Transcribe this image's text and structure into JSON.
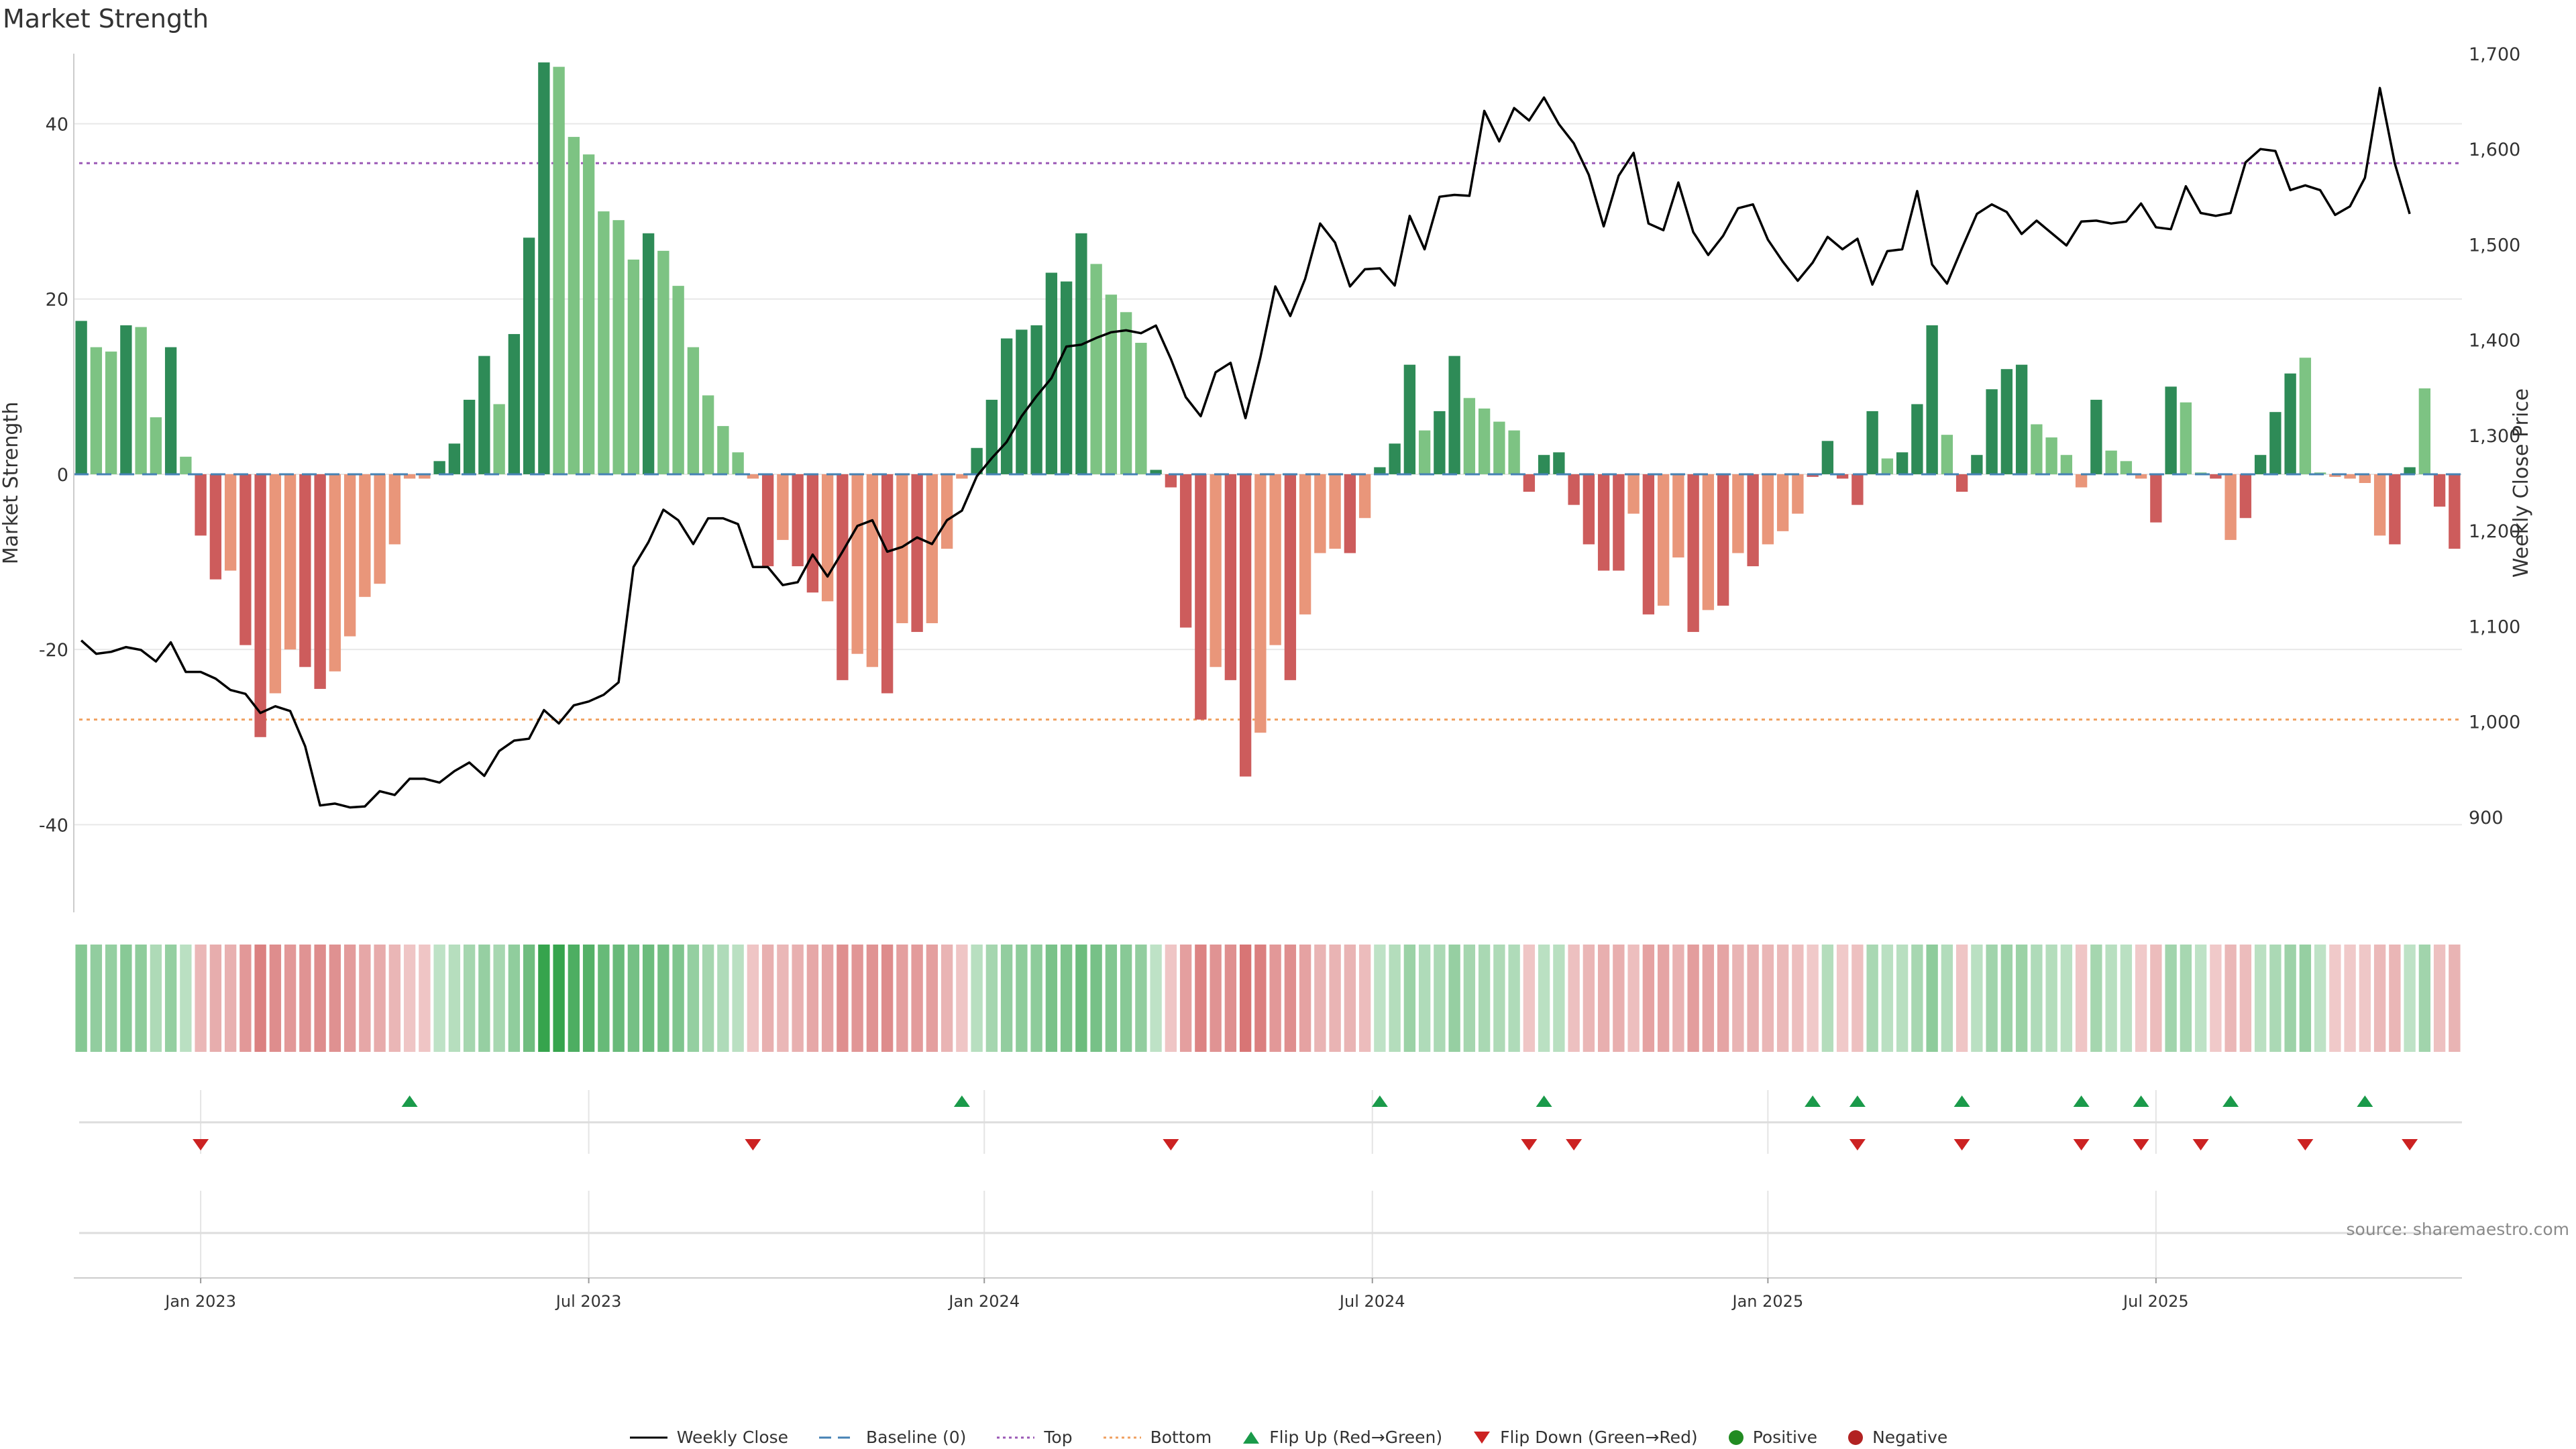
{
  "page_title": "Market Strength",
  "source_note": "source: sharemaestro.com",
  "colors": {
    "strong_green": "#2e8b57",
    "light_green": "#7dc383",
    "strong_red": "#cd5c5c",
    "light_red": "#e9967a",
    "top_line": "#9b59b6",
    "bottom_line": "#f0a060",
    "baseline": "#4682b4",
    "flip_up": "#1a9a4a",
    "flip_down": "#cc2222",
    "positive": "#228b22",
    "negative": "#b22222"
  },
  "chart_data": {
    "type": "bar",
    "title": "Market Strength",
    "ylabel": "Market Strength",
    "y2label": "Weekly Close Price",
    "ylim": [
      -50,
      48
    ],
    "y2lim": [
      800,
      1700
    ],
    "yticks": [
      -40,
      -20,
      0,
      20,
      40
    ],
    "y2ticks": [
      "900",
      "1,000",
      "1,100",
      "1,200",
      "1,300",
      "1,400",
      "1,500",
      "1,600",
      "1,700"
    ],
    "y2tick_values": [
      900,
      1000,
      1100,
      1200,
      1300,
      1400,
      1500,
      1600,
      1700
    ],
    "xlabels": [
      "Jan 2023",
      "Jul 2023",
      "Jan 2024",
      "Jul 2024",
      "Jan 2025",
      "Jul 2025"
    ],
    "xlabel_weeks": [
      8,
      34,
      60.5,
      86.5,
      113,
      139
    ],
    "top_threshold": 35.5,
    "bottom_threshold": -28,
    "legend_position": "bottom-center",
    "grid": true,
    "strength_values": [
      17.5,
      14.5,
      14,
      17,
      16.8,
      6.5,
      14.5,
      2,
      -7,
      -12,
      -11,
      -19.5,
      -30,
      -25,
      -20,
      -22,
      -24.5,
      -22.5,
      -18.5,
      -14,
      -12.5,
      -8,
      -0.5,
      -0.5,
      1.5,
      3.5,
      8.5,
      13.5,
      8,
      16,
      27,
      47,
      46.5,
      38.5,
      36.5,
      30,
      29,
      24.5,
      27.5,
      25.5,
      21.5,
      14.5,
      9,
      5.5,
      2.5,
      -0.5,
      -10.5,
      -7.5,
      -10.5,
      -13.5,
      -14.5,
      -23.5,
      -20.5,
      -22,
      -25,
      -17,
      -18,
      -17,
      -8.5,
      -0.5,
      3,
      8.5,
      15.5,
      16.5,
      17,
      23,
      22,
      27.5,
      24,
      20.5,
      18.5,
      15,
      0.5,
      -1.5,
      -17.5,
      -28,
      -22,
      -23.5,
      -34.5,
      -29.5,
      -19.5,
      -23.5,
      -16,
      -9,
      -8.5,
      -9,
      -5,
      0.8,
      3.5,
      12.5,
      5,
      7.2,
      13.5,
      8.7,
      7.5,
      6,
      5,
      -2,
      2.2,
      2.5,
      -3.5,
      -8,
      -11,
      -11,
      -4.5,
      -16,
      -15,
      -9.5,
      -18,
      -15.5,
      -15,
      -9,
      -10.5,
      -8,
      -6.5,
      -4.5,
      -0.3,
      3.8,
      -0.5,
      -3.5,
      7.2,
      1.8,
      2.5,
      8,
      17,
      4.5,
      -2,
      2.2,
      9.7,
      12,
      12.5,
      5.7,
      4.2,
      2.2,
      -1.5,
      8.5,
      2.7,
      1.5,
      -0.5,
      -5.5,
      10,
      8.2,
      0.2,
      -0.5,
      -7.5,
      -5,
      2.2,
      7.1,
      11.5,
      13.3,
      0.2,
      -0.3,
      -0.5,
      -1,
      -7,
      -8,
      0.8,
      9.8,
      -3.7,
      -8.5
    ],
    "strength_shades": [
      "d",
      "l",
      "l",
      "d",
      "l",
      "l",
      "d",
      "l",
      "d",
      "d",
      "l",
      "d",
      "d",
      "l",
      "l",
      "d",
      "d",
      "l",
      "l",
      "l",
      "l",
      "l",
      "l",
      "l",
      "d",
      "d",
      "d",
      "d",
      "l",
      "d",
      "d",
      "d",
      "l",
      "l",
      "l",
      "l",
      "l",
      "l",
      "d",
      "l",
      "l",
      "l",
      "l",
      "l",
      "l",
      "l",
      "d",
      "l",
      "d",
      "d",
      "l",
      "d",
      "l",
      "l",
      "d",
      "l",
      "d",
      "l",
      "l",
      "l",
      "d",
      "d",
      "d",
      "d",
      "d",
      "d",
      "d",
      "d",
      "l",
      "l",
      "l",
      "l",
      "d",
      "d",
      "d",
      "d",
      "l",
      "d",
      "d",
      "l",
      "l",
      "d",
      "l",
      "l",
      "l",
      "d",
      "l",
      "d",
      "d",
      "d",
      "l",
      "d",
      "d",
      "l",
      "l",
      "l",
      "l",
      "d",
      "d",
      "d",
      "d",
      "d",
      "d",
      "d",
      "l",
      "d",
      "l",
      "l",
      "d",
      "l",
      "d",
      "l",
      "d",
      "l",
      "l",
      "l",
      "d",
      "d",
      "d",
      "d",
      "d",
      "l",
      "d",
      "d",
      "d",
      "l",
      "d",
      "d",
      "d",
      "d",
      "d",
      "l",
      "l",
      "l",
      "l",
      "d",
      "l",
      "l",
      "l",
      "d",
      "d",
      "l",
      "l",
      "d",
      "l",
      "d",
      "d",
      "d",
      "d",
      "l",
      "l",
      "l",
      "l",
      "l",
      "l",
      "d",
      "d",
      "l",
      "d",
      "d",
      "d",
      "d"
    ],
    "close_prices": [
      1085,
      1071,
      1073,
      1078,
      1075,
      1063,
      1083,
      1052,
      1052,
      1045,
      1033,
      1029,
      1009,
      1016,
      1011,
      974,
      912,
      914,
      910,
      911,
      927,
      923,
      940,
      940,
      936,
      948,
      957,
      943,
      969,
      980,
      982,
      1012,
      998,
      1017,
      1021,
      1028,
      1041,
      1162,
      1188,
      1222,
      1211,
      1186,
      1213,
      1213,
      1207,
      1162,
      1162,
      1143,
      1146,
      1175,
      1152,
      1178,
      1205,
      1211,
      1178,
      1183,
      1193,
      1186,
      1211,
      1221,
      1257,
      1276,
      1293,
      1320,
      1341,
      1360,
      1393,
      1395,
      1402,
      1408,
      1410,
      1407,
      1415,
      1380,
      1340,
      1320,
      1366,
      1376,
      1318,
      1382,
      1456,
      1425,
      1464,
      1522,
      1502,
      1456,
      1474,
      1475,
      1457,
      1530,
      1495,
      1550,
      1552,
      1551,
      1640,
      1608,
      1643,
      1630,
      1654,
      1626,
      1606,
      1573,
      1519,
      1572,
      1596,
      1522,
      1515,
      1565,
      1513,
      1489,
      1509,
      1538,
      1542,
      1505,
      1482,
      1462,
      1481,
      1508,
      1495,
      1506,
      1458,
      1493,
      1495,
      1556,
      1479,
      1459,
      1496,
      1532,
      1542,
      1534,
      1511,
      1525,
      1512,
      1499,
      1524,
      1525,
      1522,
      1524,
      1543,
      1518,
      1516,
      1561,
      1533,
      1530,
      1533,
      1586,
      1600,
      1598,
      1557,
      1562,
      1557,
      1531,
      1540,
      1570,
      1664,
      1585,
      1532
    ],
    "heat_strip": [
      40,
      31,
      30,
      38,
      35,
      13,
      30,
      4,
      -16,
      -24,
      -22,
      -41,
      -60,
      -50,
      -42,
      -46,
      -51,
      -47,
      -39,
      -29,
      -26,
      -17,
      -4,
      -4,
      2,
      7,
      18,
      28,
      17,
      33,
      55,
      95,
      94,
      79,
      75,
      62,
      60,
      51,
      57,
      53,
      44,
      30,
      19,
      11,
      5,
      -4,
      -22,
      -16,
      -22,
      -28,
      -31,
      -49,
      -43,
      -46,
      -52,
      -36,
      -38,
      -36,
      -18,
      -4,
      6,
      18,
      32,
      34,
      35,
      48,
      46,
      57,
      50,
      43,
      39,
      31,
      1,
      -4,
      -36,
      -58,
      -46,
      -49,
      -70,
      -61,
      -41,
      -49,
      -33,
      -19,
      -18,
      -19,
      -11,
      2,
      8,
      26,
      11,
      15,
      28,
      18,
      16,
      13,
      11,
      -4,
      5,
      6,
      -8,
      -17,
      -23,
      -23,
      -10,
      -33,
      -31,
      -20,
      -37,
      -32,
      -31,
      -19,
      -22,
      -17,
      -14,
      -10,
      -1,
      8,
      -2,
      -8,
      16,
      4,
      6,
      17,
      35,
      10,
      -5,
      5,
      21,
      25,
      26,
      12,
      9,
      5,
      -4,
      18,
      6,
      4,
      -2,
      -12,
      21,
      17,
      1,
      -2,
      -16,
      -11,
      5,
      15,
      24,
      28,
      1,
      -2,
      -2,
      -3,
      -15,
      -17,
      2,
      21,
      -8,
      -18
    ],
    "flip_up_weeks": [
      22,
      59,
      87,
      98,
      116,
      119,
      126,
      134,
      138,
      144,
      153
    ],
    "flip_down_weeks": [
      8,
      45,
      73,
      97,
      100,
      119,
      126,
      134,
      138,
      142,
      149,
      156
    ],
    "legend": [
      "Weekly Close",
      "Baseline (0)",
      "Top",
      "Bottom",
      "Flip Up (Red→Green)",
      "Flip Down (Green→Red)",
      "Positive",
      "Negative"
    ]
  }
}
